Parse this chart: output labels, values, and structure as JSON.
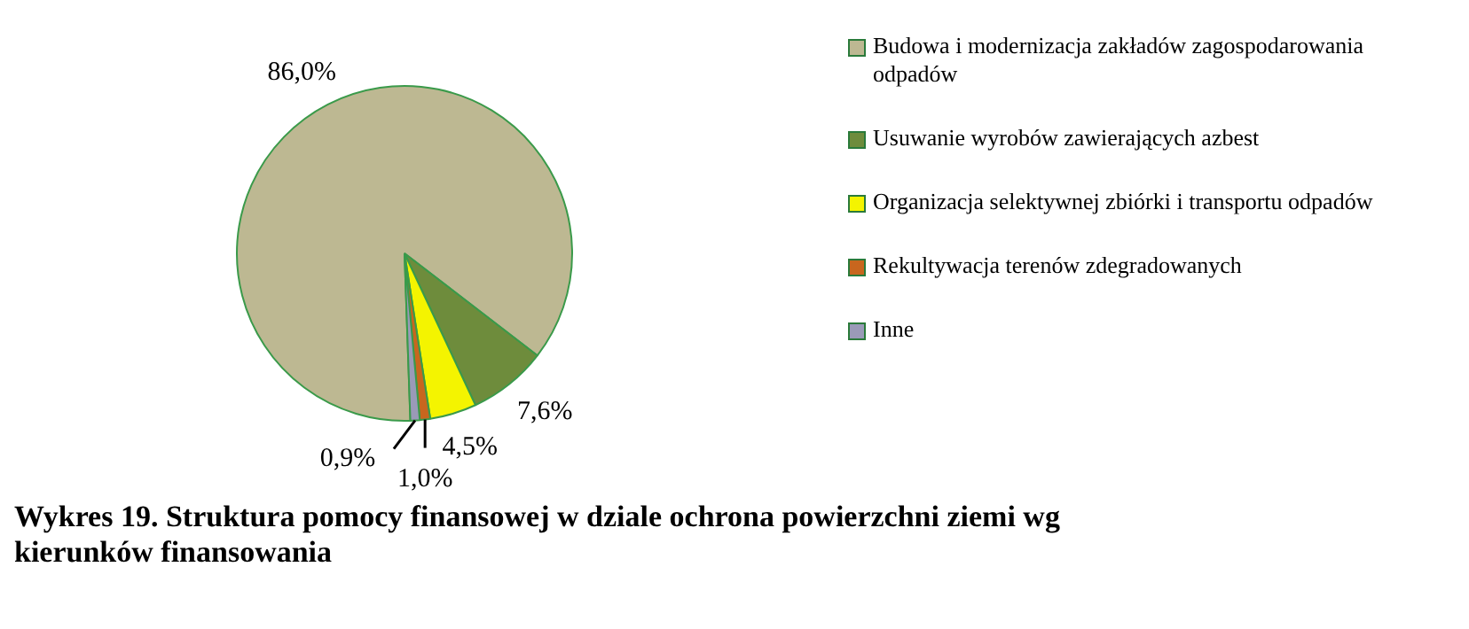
{
  "chart_data": {
    "type": "pie",
    "title": "Wykres 19. Struktura pomocy finansowej w dziale ochrona powierzchni ziemi wg kierunków finansowania",
    "categories": [
      "Budowa i modernizacja zakładów zagospodarowania odpadów",
      "Usuwanie wyrobów zawierających azbest",
      "Organizacja selektywnej zbiórki i transportu odpadów",
      "Rekultywacja terenów zdegradowanych",
      "Inne"
    ],
    "values": [
      86.0,
      7.6,
      4.5,
      1.0,
      0.9
    ],
    "colors": [
      "#bdb892",
      "#6e8c3c",
      "#f4f400",
      "#c8661e",
      "#9a9ab8"
    ],
    "value_labels": [
      "86,0%",
      "7,6%",
      "4,5%",
      "1,0%",
      "0,9%"
    ],
    "legend": "right"
  }
}
